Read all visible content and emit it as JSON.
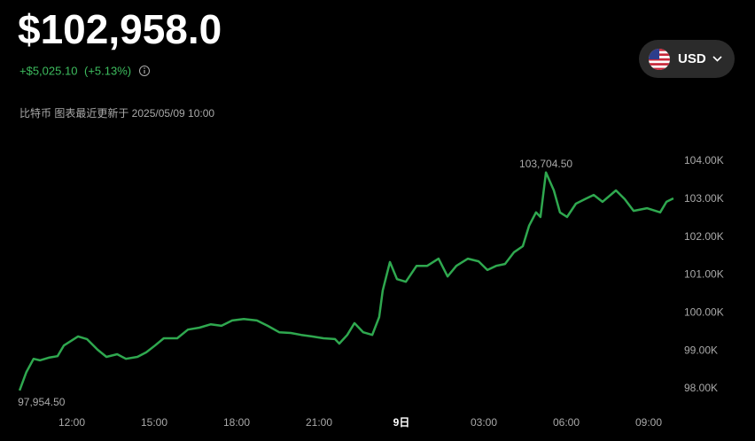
{
  "header": {
    "price": "$102,958.0",
    "change": "+$5,025.10",
    "change_pct": "(+5.13%)",
    "updated": "比特币 图表最近更新于 2025/05/09 10:00",
    "currency": "USD"
  },
  "chart_data": {
    "type": "line",
    "color": "#2fa84f",
    "x": [
      10.1,
      10.35,
      10.61,
      10.84,
      11.16,
      11.48,
      11.71,
      12.23,
      12.55,
      12.94,
      13.26,
      13.65,
      13.97,
      14.39,
      14.71,
      15.03,
      15.35,
      15.84,
      16.23,
      16.65,
      17.06,
      17.45,
      17.84,
      18.26,
      18.74,
      19.13,
      19.55,
      19.97,
      20.35,
      20.74,
      21.16,
      21.58,
      21.74,
      22.03,
      22.29,
      22.61,
      22.94,
      23.19,
      23.32,
      23.58,
      23.84,
      24.16,
      24.55,
      24.94,
      25.35,
      25.68,
      26.0,
      26.42,
      26.81,
      27.13,
      27.45,
      27.77,
      28.1,
      28.42,
      28.65,
      28.9,
      29.06,
      29.26,
      29.55,
      29.77,
      30.03,
      30.35,
      30.68,
      31.0,
      31.32,
      31.81,
      32.13,
      32.45,
      32.94,
      33.42,
      33.65,
      33.9
    ],
    "values": [
      97954.5,
      98440,
      98790,
      98750,
      98820,
      98860,
      99140,
      99380,
      99310,
      99030,
      98840,
      98910,
      98790,
      98840,
      98960,
      99140,
      99330,
      99330,
      99560,
      99610,
      99700,
      99660,
      99800,
      99840,
      99800,
      99660,
      99490,
      99470,
      99420,
      99380,
      99330,
      99310,
      99190,
      99420,
      99730,
      99490,
      99420,
      99890,
      100590,
      101340,
      100890,
      100820,
      101240,
      101240,
      101430,
      100960,
      101240,
      101430,
      101360,
      101130,
      101240,
      101290,
      101600,
      101760,
      102300,
      102650,
      102530,
      103704.5,
      103230,
      102650,
      102530,
      102880,
      103000,
      103110,
      102930,
      103230,
      103000,
      102690,
      102760,
      102650,
      102930,
      103020
    ],
    "xlim": [
      10,
      34
    ],
    "ylim": [
      97500,
      104400
    ],
    "xticks": [
      {
        "value": 12,
        "label": "12:00"
      },
      {
        "value": 15,
        "label": "15:00"
      },
      {
        "value": 18,
        "label": "18:00"
      },
      {
        "value": 21,
        "label": "21:00"
      },
      {
        "value": 24,
        "label": "9日"
      },
      {
        "value": 27,
        "label": "03:00"
      },
      {
        "value": 30,
        "label": "06:00"
      },
      {
        "value": 33,
        "label": "09:00"
      }
    ],
    "yticks": [
      {
        "value": 98000,
        "label": "98.00K"
      },
      {
        "value": 99000,
        "label": "99.00K"
      },
      {
        "value": 100000,
        "label": "100.00K"
      },
      {
        "value": 101000,
        "label": "101.00K"
      },
      {
        "value": 102000,
        "label": "102.00K"
      },
      {
        "value": 103000,
        "label": "103.00K"
      },
      {
        "value": 104000,
        "label": "104.00K"
      }
    ],
    "annotations": [
      {
        "x": 29.26,
        "y": 103704.5,
        "text": "103,704.50"
      },
      {
        "x": 10.1,
        "y": 97954.5,
        "text": "97,954.50"
      }
    ]
  }
}
